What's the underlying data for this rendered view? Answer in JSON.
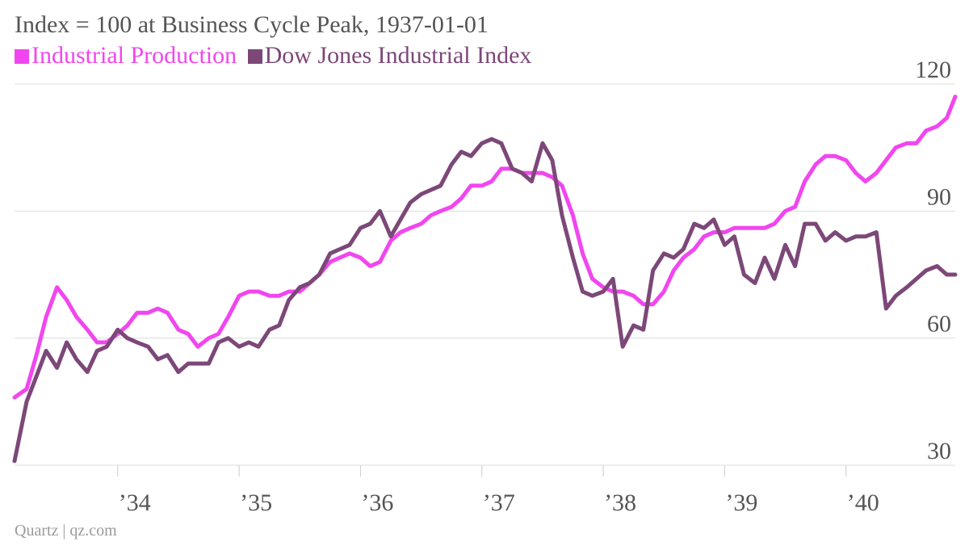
{
  "chart_data": {
    "type": "line",
    "title": "Index = 100 at Business Cycle Peak, 1937-01-01",
    "source": "Quartz | qz.com",
    "ylim": [
      30,
      120
    ],
    "yticks": [
      "30",
      "60",
      "90",
      "120"
    ],
    "xlim": [
      1933.15,
      1940.9
    ],
    "xticks": [
      {
        "label": "’34",
        "value": 1934.0
      },
      {
        "label": "’35",
        "value": 1935.0
      },
      {
        "label": "’36",
        "value": 1936.0
      },
      {
        "label": "’37",
        "value": 1937.0
      },
      {
        "label": "’38",
        "value": 1938.0
      },
      {
        "label": "’39",
        "value": 1939.0
      },
      {
        "label": "’40",
        "value": 1940.0
      }
    ],
    "grid": true,
    "legend_position": "top-left",
    "series": [
      {
        "name": "Industrial Production",
        "color": "#f146ef",
        "points": [
          [
            1933.15,
            46
          ],
          [
            1933.25,
            48
          ],
          [
            1933.33,
            56
          ],
          [
            1933.41,
            65
          ],
          [
            1933.5,
            72
          ],
          [
            1933.58,
            69
          ],
          [
            1933.66,
            65
          ],
          [
            1933.75,
            62
          ],
          [
            1933.83,
            59
          ],
          [
            1933.91,
            59
          ],
          [
            1934.0,
            61
          ],
          [
            1934.08,
            63
          ],
          [
            1934.16,
            66
          ],
          [
            1934.25,
            66
          ],
          [
            1934.33,
            67
          ],
          [
            1934.41,
            66
          ],
          [
            1934.5,
            62
          ],
          [
            1934.58,
            61
          ],
          [
            1934.66,
            58
          ],
          [
            1934.75,
            60
          ],
          [
            1934.83,
            61
          ],
          [
            1934.91,
            65
          ],
          [
            1935.0,
            70
          ],
          [
            1935.08,
            71
          ],
          [
            1935.16,
            71
          ],
          [
            1935.25,
            70
          ],
          [
            1935.33,
            70
          ],
          [
            1935.41,
            71
          ],
          [
            1935.5,
            71
          ],
          [
            1935.58,
            73
          ],
          [
            1935.66,
            75
          ],
          [
            1935.75,
            78
          ],
          [
            1935.83,
            79
          ],
          [
            1935.91,
            80
          ],
          [
            1936.0,
            79
          ],
          [
            1936.08,
            77
          ],
          [
            1936.16,
            78
          ],
          [
            1936.25,
            83
          ],
          [
            1936.33,
            85
          ],
          [
            1936.41,
            86
          ],
          [
            1936.5,
            87
          ],
          [
            1936.58,
            89
          ],
          [
            1936.66,
            90
          ],
          [
            1936.75,
            91
          ],
          [
            1936.83,
            93
          ],
          [
            1936.91,
            96
          ],
          [
            1937.0,
            96
          ],
          [
            1937.08,
            97
          ],
          [
            1937.16,
            100
          ],
          [
            1937.25,
            100
          ],
          [
            1937.33,
            99
          ],
          [
            1937.41,
            99
          ],
          [
            1937.5,
            99
          ],
          [
            1937.58,
            98
          ],
          [
            1937.66,
            96
          ],
          [
            1937.75,
            89
          ],
          [
            1937.83,
            80
          ],
          [
            1937.91,
            74
          ],
          [
            1938.0,
            72
          ],
          [
            1938.08,
            71
          ],
          [
            1938.16,
            71
          ],
          [
            1938.25,
            70
          ],
          [
            1938.33,
            68
          ],
          [
            1938.41,
            68
          ],
          [
            1938.5,
            71
          ],
          [
            1938.58,
            76
          ],
          [
            1938.66,
            79
          ],
          [
            1938.75,
            81
          ],
          [
            1938.83,
            84
          ],
          [
            1938.91,
            85
          ],
          [
            1939.0,
            85
          ],
          [
            1939.08,
            86
          ],
          [
            1939.16,
            86
          ],
          [
            1939.25,
            86
          ],
          [
            1939.33,
            86
          ],
          [
            1939.41,
            87
          ],
          [
            1939.5,
            90
          ],
          [
            1939.58,
            91
          ],
          [
            1939.66,
            97
          ],
          [
            1939.75,
            101
          ],
          [
            1939.83,
            103
          ],
          [
            1939.91,
            103
          ],
          [
            1940.0,
            102
          ],
          [
            1940.08,
            99
          ],
          [
            1940.16,
            97
          ],
          [
            1940.25,
            99
          ],
          [
            1940.33,
            102
          ],
          [
            1940.41,
            105
          ],
          [
            1940.5,
            106
          ],
          [
            1940.58,
            106
          ],
          [
            1940.66,
            109
          ],
          [
            1940.75,
            110
          ],
          [
            1940.83,
            112
          ],
          [
            1940.9,
            117
          ]
        ]
      },
      {
        "name": "Dow Jones Industrial Index",
        "color": "#7c4878",
        "points": [
          [
            1933.15,
            31
          ],
          [
            1933.25,
            45
          ],
          [
            1933.33,
            51
          ],
          [
            1933.41,
            57
          ],
          [
            1933.5,
            53
          ],
          [
            1933.58,
            59
          ],
          [
            1933.66,
            55
          ],
          [
            1933.75,
            52
          ],
          [
            1933.83,
            57
          ],
          [
            1933.91,
            58
          ],
          [
            1934.0,
            62
          ],
          [
            1934.08,
            60
          ],
          [
            1934.16,
            59
          ],
          [
            1934.25,
            58
          ],
          [
            1934.33,
            55
          ],
          [
            1934.41,
            56
          ],
          [
            1934.5,
            52
          ],
          [
            1934.58,
            54
          ],
          [
            1934.66,
            54
          ],
          [
            1934.75,
            54
          ],
          [
            1934.83,
            59
          ],
          [
            1934.91,
            60
          ],
          [
            1935.0,
            58
          ],
          [
            1935.08,
            59
          ],
          [
            1935.16,
            58
          ],
          [
            1935.25,
            62
          ],
          [
            1935.33,
            63
          ],
          [
            1935.41,
            69
          ],
          [
            1935.5,
            72
          ],
          [
            1935.58,
            73
          ],
          [
            1935.66,
            75
          ],
          [
            1935.75,
            80
          ],
          [
            1935.83,
            81
          ],
          [
            1935.91,
            82
          ],
          [
            1936.0,
            86
          ],
          [
            1936.08,
            87
          ],
          [
            1936.16,
            90
          ],
          [
            1936.25,
            84
          ],
          [
            1936.33,
            88
          ],
          [
            1936.41,
            92
          ],
          [
            1936.5,
            94
          ],
          [
            1936.58,
            95
          ],
          [
            1936.66,
            96
          ],
          [
            1936.75,
            101
          ],
          [
            1936.83,
            104
          ],
          [
            1936.91,
            103
          ],
          [
            1937.0,
            106
          ],
          [
            1937.08,
            107
          ],
          [
            1937.16,
            106
          ],
          [
            1937.25,
            100
          ],
          [
            1937.33,
            99
          ],
          [
            1937.41,
            97
          ],
          [
            1937.5,
            106
          ],
          [
            1937.58,
            102
          ],
          [
            1937.66,
            89
          ],
          [
            1937.75,
            79
          ],
          [
            1937.83,
            71
          ],
          [
            1937.91,
            70
          ],
          [
            1938.0,
            71
          ],
          [
            1938.08,
            74
          ],
          [
            1938.16,
            58
          ],
          [
            1938.25,
            63
          ],
          [
            1938.33,
            62
          ],
          [
            1938.41,
            76
          ],
          [
            1938.5,
            80
          ],
          [
            1938.58,
            79
          ],
          [
            1938.66,
            81
          ],
          [
            1938.75,
            87
          ],
          [
            1938.83,
            86
          ],
          [
            1938.91,
            88
          ],
          [
            1939.0,
            82
          ],
          [
            1939.08,
            84
          ],
          [
            1939.16,
            75
          ],
          [
            1939.25,
            73
          ],
          [
            1939.33,
            79
          ],
          [
            1939.41,
            74
          ],
          [
            1939.5,
            82
          ],
          [
            1939.58,
            77
          ],
          [
            1939.66,
            87
          ],
          [
            1939.75,
            87
          ],
          [
            1939.83,
            83
          ],
          [
            1939.91,
            85
          ],
          [
            1940.0,
            83
          ],
          [
            1940.08,
            84
          ],
          [
            1940.16,
            84
          ],
          [
            1940.25,
            85
          ],
          [
            1940.33,
            67
          ],
          [
            1940.41,
            70
          ],
          [
            1940.5,
            72
          ],
          [
            1940.58,
            74
          ],
          [
            1940.66,
            76
          ],
          [
            1940.75,
            77
          ],
          [
            1940.83,
            75
          ],
          [
            1940.9,
            75
          ]
        ]
      }
    ]
  }
}
